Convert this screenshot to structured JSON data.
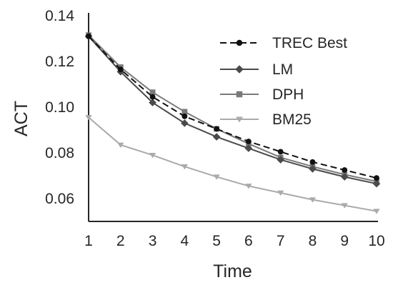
{
  "chart_data": {
    "type": "line",
    "xlabel": "Time",
    "ylabel": "ACT",
    "x": [
      1,
      2,
      3,
      4,
      5,
      6,
      7,
      8,
      9,
      10
    ],
    "xlim": [
      1,
      10
    ],
    "ylim": [
      0.05,
      0.14
    ],
    "x_ticks": [
      "1",
      "2",
      "3",
      "4",
      "5",
      "6",
      "7",
      "8",
      "9",
      "10"
    ],
    "y_ticks": [
      0.06,
      0.08,
      0.1,
      0.12,
      0.14
    ],
    "y_tick_labels": [
      "0.06",
      "0.08",
      "0.10",
      "0.12",
      "0.14"
    ],
    "grid": false,
    "legend_position": "top-right",
    "series": [
      {
        "name": "TREC Best",
        "values": [
          0.131,
          0.1165,
          0.1045,
          0.096,
          0.0905,
          0.085,
          0.0805,
          0.076,
          0.0725,
          0.069
        ],
        "color": "#111111",
        "line_style": "dashed",
        "marker": "circle"
      },
      {
        "name": "LM",
        "values": [
          0.131,
          0.1155,
          0.102,
          0.093,
          0.087,
          0.082,
          0.077,
          0.073,
          0.0695,
          0.0665
        ],
        "color": "#4a4a4a",
        "line_style": "solid",
        "marker": "diamond"
      },
      {
        "name": "DPH",
        "values": [
          0.1315,
          0.1175,
          0.1065,
          0.098,
          0.0905,
          0.084,
          0.078,
          0.074,
          0.0705,
          0.0675
        ],
        "color": "#7a7a7a",
        "line_style": "solid",
        "marker": "square"
      },
      {
        "name": "BM25",
        "values": [
          0.0955,
          0.0835,
          0.079,
          0.074,
          0.0695,
          0.0655,
          0.0625,
          0.0595,
          0.057,
          0.0545
        ],
        "color": "#aaaaaa",
        "line_style": "solid",
        "marker": "triangle-down"
      }
    ]
  }
}
